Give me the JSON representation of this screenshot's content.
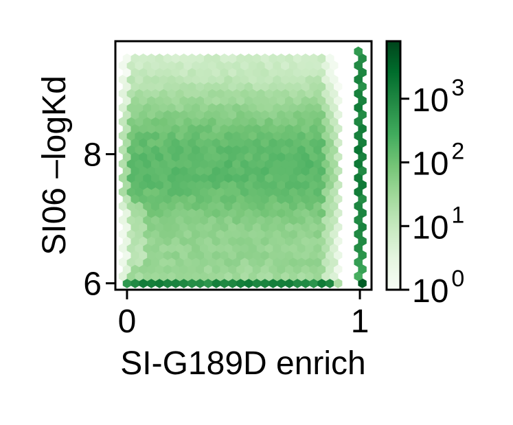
{
  "chart_data": {
    "type": "heatmap",
    "subtype": "hexbin",
    "xlabel": "SI-G189D enrich",
    "ylabel": "SI06 –logKd",
    "xlim": [
      -0.05,
      1.05
    ],
    "ylim": [
      5.9,
      9.75
    ],
    "xticks": [
      {
        "value": 0,
        "label": "0"
      },
      {
        "value": 1,
        "label": "1"
      }
    ],
    "yticks": [
      {
        "value": 6,
        "label": "6"
      },
      {
        "value": 8,
        "label": "8"
      }
    ],
    "grid": false,
    "colormap": "Greens",
    "colors": [
      "#f7fcf5",
      "#e5f5e0",
      "#c7e9c0",
      "#a1d99b",
      "#74c476",
      "#41ab5d",
      "#238b45",
      "#006d2c",
      "#00441b"
    ],
    "colorbar": {
      "scale": "log",
      "range": [
        1,
        8000
      ],
      "ticks": [
        {
          "value": 1,
          "base": "10",
          "exp": "0"
        },
        {
          "value": 10,
          "base": "10",
          "exp": "1"
        },
        {
          "value": 100,
          "base": "10",
          "exp": "2"
        },
        {
          "value": 1000,
          "base": "10",
          "exp": "3"
        }
      ]
    },
    "density_features": {
      "main_cluster": {
        "x_range": [
          0.0,
          0.85
        ],
        "y_range": [
          6.0,
          9.5
        ],
        "peak_y": 7.8,
        "peak_count": 150
      },
      "floor_row": {
        "y": 6.0,
        "x_range": [
          0.0,
          0.9
        ],
        "count": 1200
      },
      "saturated_column": {
        "x": 1.0,
        "y_range": [
          6.0,
          9.6
        ],
        "count_range": [
          300,
          4000
        ]
      }
    }
  }
}
